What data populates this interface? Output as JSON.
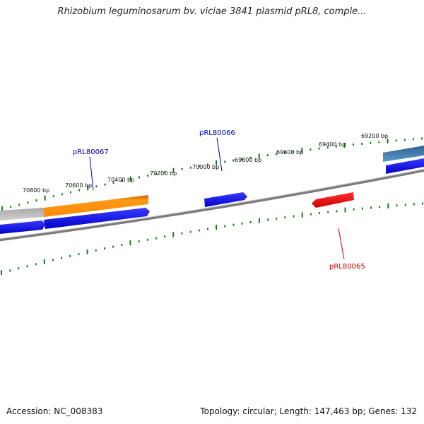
{
  "title": "Rhizobium leguminosarum bv. viciae 3841 plasmid pRL8, comple...",
  "footer": {
    "accession": "Accession: NC_008383",
    "summary": "Topology: circular; Length: 147,463 bp; Genes: 132"
  },
  "ruler_ticks": [
    "70800 bp",
    "70600 bp",
    "70400 bp",
    "70200 bp",
    "70000 bp",
    "69800 bp",
    "69600 bp",
    "69400 bp",
    "69200 bp"
  ],
  "gene_labels": [
    {
      "name": "pRL80067",
      "color": "#0000aa"
    },
    {
      "name": "pRL80066",
      "color": "#0000aa"
    },
    {
      "name": "pRL80065",
      "color": "#cc0000"
    }
  ],
  "colors": {
    "backbone": "#808080",
    "tick": "#1a7a1a",
    "cds_forward": "#0000ee",
    "cds_reverse": "#ee0000",
    "gene_orange": "#ff8c00",
    "gene_grey": "#c0c0c0",
    "gene_steel": "#4682b4"
  }
}
